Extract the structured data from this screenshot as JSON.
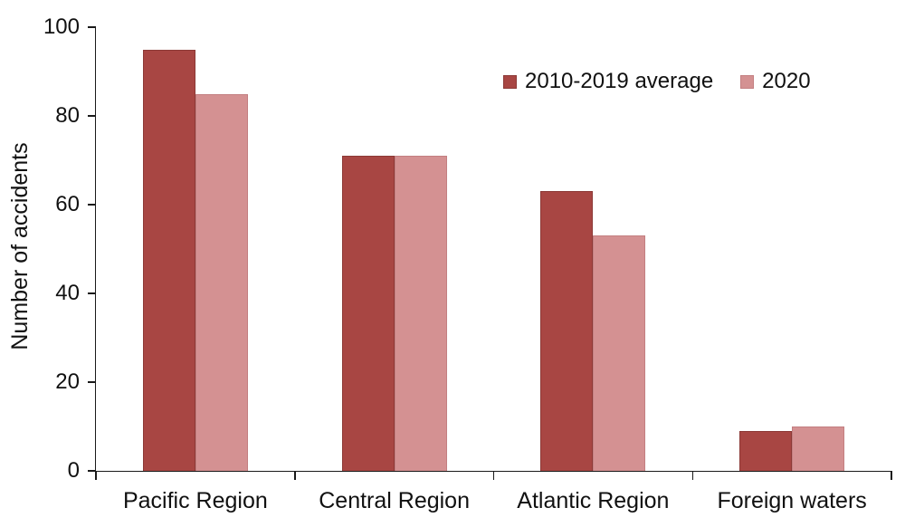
{
  "chart_data": {
    "type": "bar",
    "title": "",
    "xlabel": "",
    "ylabel": "Number of accidents",
    "categories": [
      "Pacific Region",
      "Central Region",
      "Atlantic Region",
      "Foreign waters"
    ],
    "series": [
      {
        "name": "2010-2019 average",
        "color": "#A84643",
        "border_color": "#8C3936",
        "values": [
          95,
          71,
          63,
          9
        ]
      },
      {
        "name": "2020",
        "color": "#D49192",
        "border_color": "#C37F81",
        "values": [
          85,
          71,
          53,
          10
        ]
      }
    ],
    "ylim": [
      0,
      100
    ],
    "yticks": [
      0,
      20,
      40,
      60,
      80,
      100
    ],
    "grid": false,
    "legend_position": "top-right",
    "axis_color": "#1a1a1a",
    "text_color": "#111111"
  }
}
